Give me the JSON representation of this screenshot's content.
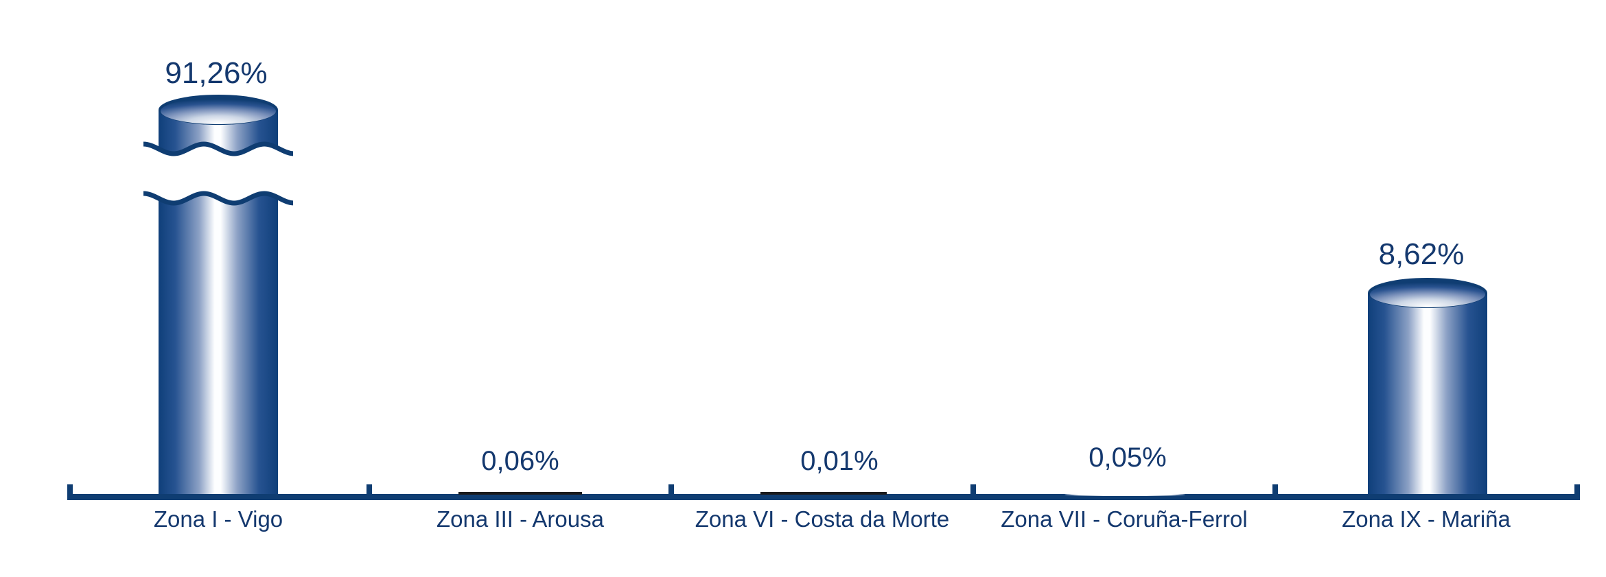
{
  "page": {
    "background": "#ffffff"
  },
  "chart_data": {
    "type": "bar",
    "style": "3d-cylinder-vertical",
    "title": "",
    "xlabel": "",
    "ylabel": "",
    "unit": "percent",
    "categories": [
      "Zona I - Vigo",
      "Zona III - Arousa",
      "Zona VI - Costa da Morte",
      "Zona VII - Coruña-Ferrol",
      "Zona IX - Mariña"
    ],
    "values": [
      91.26,
      0.06,
      0.01,
      0.05,
      8.62
    ],
    "value_labels": [
      "91,26%",
      "0,06%",
      "0,01%",
      "0,05%",
      "8,62%"
    ],
    "axis_break": {
      "on_category": "Zona I - Vigo",
      "style": "double-wavy-line"
    },
    "y_axis": {
      "visible": false,
      "gridlines": false
    },
    "x_axis": {
      "visible": true,
      "ticks": 6
    },
    "legend": {
      "visible": false
    },
    "colors": {
      "navy": "#0f3d72",
      "label_text": "#14386e",
      "tiny_bar_dark": "#1b1b1d",
      "highlight": "#ffffff"
    }
  }
}
